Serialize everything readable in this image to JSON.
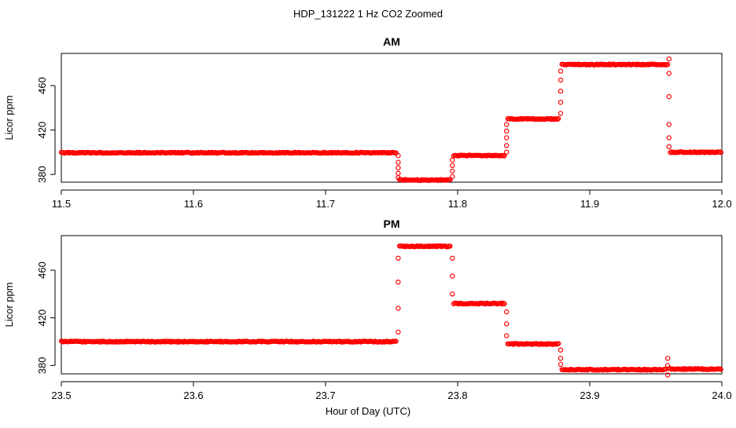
{
  "figure": {
    "title": "HDP_131222  1 Hz CO2 Zoomed",
    "xlabel": "Hour of Day (UTC)",
    "point_color": "#ff0000"
  },
  "chart_data": [
    {
      "type": "scatter",
      "title": "AM",
      "ylabel": "Licor ppm",
      "xlim": [
        11.5,
        12.0
      ],
      "ylim": [
        373,
        489
      ],
      "x_ticks": [
        "11.5",
        "11.6",
        "11.7",
        "11.8",
        "11.9",
        "12.0"
      ],
      "x_tick_values": [
        11.5,
        11.6,
        11.7,
        11.8,
        11.9,
        12.0
      ],
      "y_ticks": [
        "380",
        "420",
        "460"
      ],
      "y_tick_values": [
        380,
        420,
        460
      ],
      "series": [
        {
          "levels": [
            {
              "x_start": 11.5,
              "x_end": 11.754,
              "y": 399.5
            },
            {
              "x_start": 11.756,
              "x_end": 11.795,
              "y": 375.0
            },
            {
              "x_start": 11.797,
              "x_end": 11.836,
              "y": 397.0
            },
            {
              "x_start": 11.838,
              "x_end": 11.877,
              "y": 430.0
            },
            {
              "x_start": 11.879,
              "x_end": 11.959,
              "y": 479.0
            },
            {
              "x_start": 11.961,
              "x_end": 12.0,
              "y": 400.0
            }
          ],
          "transitions": [
            {
              "x": 11.755,
              "y": [
                397,
                391,
                386,
                381,
                377
              ]
            },
            {
              "x": 11.796,
              "y": [
                378,
                383,
                388,
                393
              ]
            },
            {
              "x": 11.837,
              "y": [
                400,
                406,
                413,
                419,
                425
              ]
            },
            {
              "x": 11.878,
              "y": [
                435,
                445,
                455,
                465,
                473
              ]
            },
            {
              "x": 11.96,
              "y": [
                484,
                471,
                450,
                425,
                413,
                405
              ]
            }
          ]
        }
      ]
    },
    {
      "type": "scatter",
      "title": "PM",
      "ylabel": "Licor ppm",
      "xlim": [
        23.5,
        24.0
      ],
      "ylim": [
        373,
        489
      ],
      "x_ticks": [
        "23.5",
        "23.6",
        "23.7",
        "23.8",
        "23.9",
        "24.0"
      ],
      "x_tick_values": [
        23.5,
        23.6,
        23.7,
        23.8,
        23.9,
        24.0
      ],
      "y_ticks": [
        "380",
        "420",
        "460"
      ],
      "y_tick_values": [
        380,
        420,
        460
      ],
      "series": [
        {
          "levels": [
            {
              "x_start": 23.5,
              "x_end": 23.754,
              "y": 400.0
            },
            {
              "x_start": 23.756,
              "x_end": 23.795,
              "y": 480.0
            },
            {
              "x_start": 23.797,
              "x_end": 23.836,
              "y": 432.0
            },
            {
              "x_start": 23.838,
              "x_end": 23.877,
              "y": 398.0
            },
            {
              "x_start": 23.879,
              "x_end": 23.958,
              "y": 376.5
            },
            {
              "x_start": 23.96,
              "x_end": 24.0,
              "y": 377.0
            }
          ],
          "transitions": [
            {
              "x": 23.755,
              "y": [
                408,
                428,
                450,
                470
              ]
            },
            {
              "x": 23.796,
              "y": [
                470,
                455,
                440
              ]
            },
            {
              "x": 23.837,
              "y": [
                425,
                415,
                405
              ]
            },
            {
              "x": 23.878,
              "y": [
                393,
                386,
                381
              ]
            },
            {
              "x": 23.959,
              "y": [
                386,
                372,
                380
              ]
            }
          ]
        }
      ]
    }
  ]
}
